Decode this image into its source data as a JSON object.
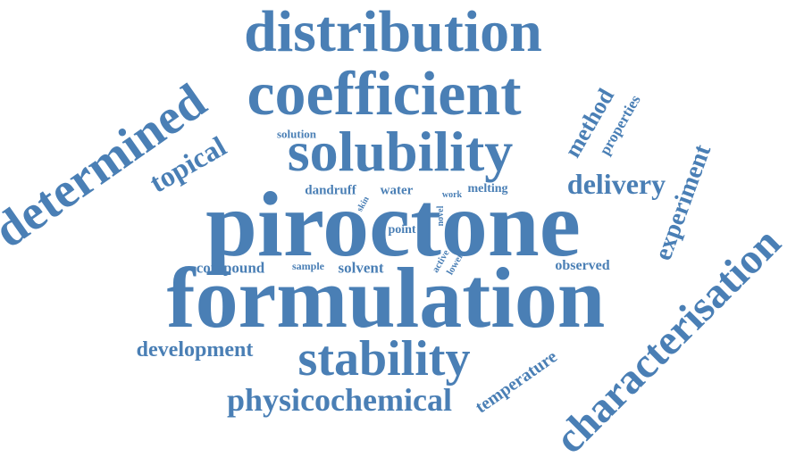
{
  "word_color": "#4a7fb5",
  "background_color": "#ffffff",
  "words": {
    "distribution": "distribution",
    "coefficient": "coefficient",
    "solubility": "solubility",
    "piroctone": "piroctone",
    "formulation": "formulation",
    "stability": "stability",
    "physicochemical": "physicochemical",
    "determined": "determined",
    "characterisation": "characterisation",
    "experiment": "experiment",
    "topical": "topical",
    "delivery": "delivery",
    "method": "method",
    "properties": "properties",
    "development": "development",
    "temperature": "temperature",
    "compound": "compound",
    "solvent": "solvent",
    "observed": "observed",
    "dandruff": "dandruff",
    "water": "water",
    "melting": "melting",
    "solution": "solution",
    "point": "point",
    "sample": "sample",
    "skin": "skin",
    "work": "work",
    "novel": "novel",
    "active": "active",
    "lower": "lower"
  }
}
